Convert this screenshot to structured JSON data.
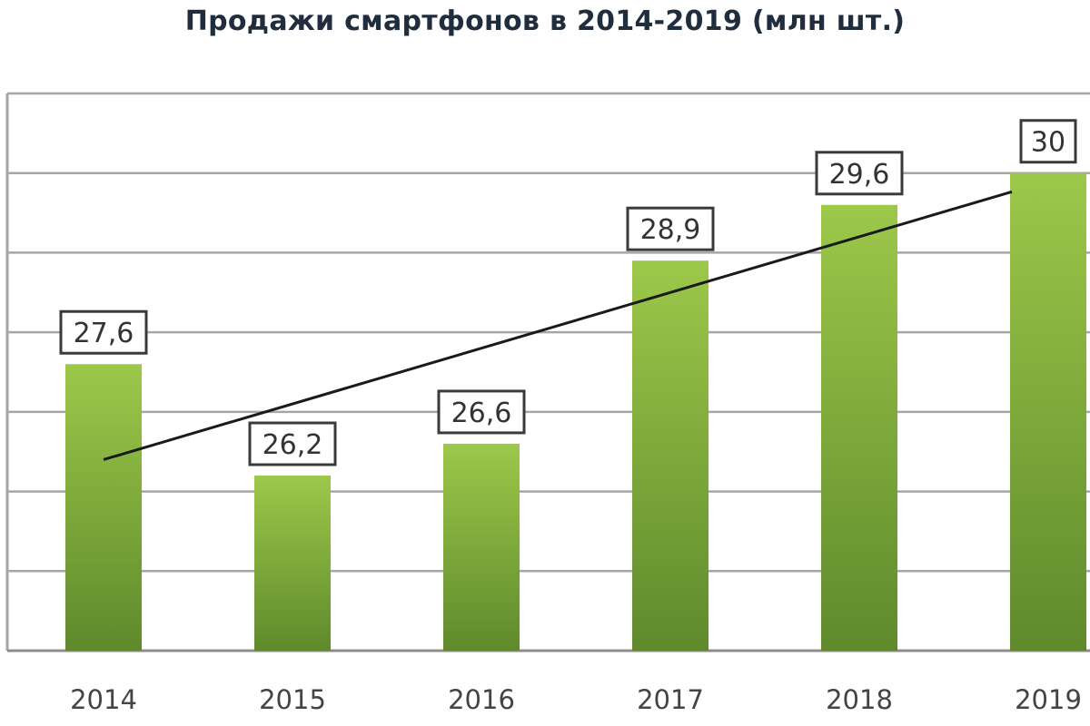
{
  "title": "Продажи смартфонов в 2014-2019 (млн шт.)",
  "colors": {
    "bar_top": "#9cc84a",
    "bar_bottom": "#5f8a2c",
    "grid": "#a6a6a6",
    "trendline": "#1a1a1a",
    "label_border": "#3a3a3a"
  },
  "chart_data": {
    "type": "bar",
    "title": "Продажи смартфонов в 2014-2019 (млн шт.)",
    "categories": [
      "2014",
      "2015",
      "2016",
      "2017",
      "2018",
      "2019"
    ],
    "values": [
      27.6,
      26.2,
      26.6,
      28.9,
      29.6,
      30
    ],
    "data_labels": [
      "27,6",
      "26,2",
      "26,6",
      "28,9",
      "29,6",
      "30"
    ],
    "xlabel": "",
    "ylabel": "",
    "ylim": [
      24,
      31
    ],
    "grid": true,
    "trendline": "linear",
    "legend": "none"
  }
}
